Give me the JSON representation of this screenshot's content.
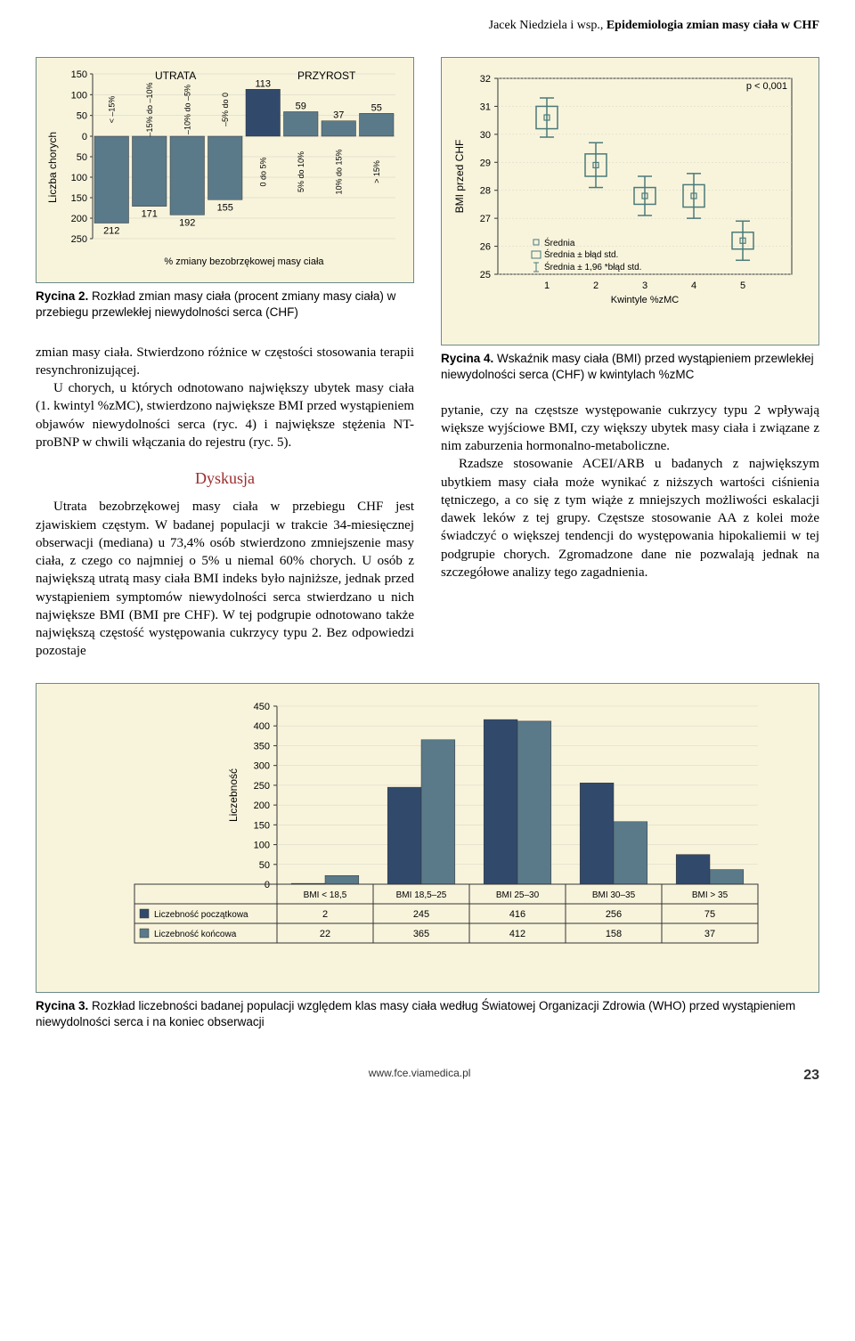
{
  "header": {
    "author": "Jacek Niedziela i wsp.,",
    "title": "Epidemiologia zmian masy ciała w CHF"
  },
  "fig2": {
    "chart": {
      "type": "bar",
      "ylabel": "Liczba chorych",
      "positive_ticks": [
        0,
        50,
        100,
        150
      ],
      "negative_ticks": [
        50,
        100,
        150,
        200,
        250
      ],
      "section_labels": {
        "loss": "UTRATA",
        "gain": "PRZYROST"
      },
      "x_title": "% zmiany bezobrzękowej masy ciała",
      "bars": [
        {
          "label": "< –15%",
          "value": -212,
          "color": "#5a7a8a"
        },
        {
          "label": "–15% do –10%",
          "value": -171,
          "color": "#5a7a8a"
        },
        {
          "label": "–10% do –5%",
          "value": -192,
          "color": "#5a7a8a"
        },
        {
          "label": "–5% do 0",
          "value": -155,
          "color": "#5a7a8a"
        },
        {
          "label": "0 do 5%",
          "value": 113,
          "color": "#314a6c"
        },
        {
          "label": "5% do 10%",
          "value": 59,
          "color": "#5a7a8a"
        },
        {
          "label": "10% do 15%",
          "value": 37,
          "color": "#5a7a8a"
        },
        {
          "label": "> 15%",
          "value": 55,
          "color": "#5a7a8a"
        }
      ]
    },
    "caption_bold": "Rycina 2.",
    "caption_rest": " Rozkład zmian masy ciała (procent zmiany masy ciała) w przebiegu przewlekłej niewydolności serca (CHF)"
  },
  "left_body": {
    "p1_noindent": "zmian masy ciała. Stwierdzono różnice w częstości stosowania terapii resynchronizującej.",
    "p2": "U chorych, u których odnotowano największy ubytek masy ciała (1. kwintyl %zMC), stwierdzono największe BMI przed wystąpieniem objawów niewydolności serca (ryc. 4) i największe stężenia NT-proBNP w chwili włączania do rejestru (ryc. 5)."
  },
  "discussion": {
    "title": "Dyskusja",
    "p1": "Utrata bezobrzękowej masy ciała w przebiegu CHF jest zjawiskiem częstym. W badanej populacji w trakcie 34-miesięcznej obserwacji (mediana) u 73,4% osób stwierdzono zmniejszenie masy ciała, z czego co najmniej o 5% u niemal 60% chorych. U osób z największą utratą masy ciała BMI indeks było najniższe, jednak przed wystąpieniem symptomów niewydolności serca stwierdzano u nich największe BMI (BMI pre CHF). W tej podgrupie odnotowano także największą częstość występowania cukrzycy typu 2. Bez odpowiedzi pozostaje"
  },
  "fig4": {
    "chart": {
      "type": "boxplot",
      "ylabel": "BMI przed CHF",
      "xlabel": "Kwintyle %zMC",
      "pvalue": "p < 0,001",
      "ylim": [
        25,
        32
      ],
      "ytick_step": 1,
      "legend": {
        "mean": "Średnia",
        "se": "Średnia ± błąd std.",
        "ci": "Średnia ± 1,96 *błąd std."
      },
      "groups": [
        {
          "x": 1,
          "mean": 30.6,
          "se_low": 30.2,
          "se_high": 31.0,
          "ci_low": 29.9,
          "ci_high": 31.3,
          "color": "#4a7a7a"
        },
        {
          "x": 2,
          "mean": 28.9,
          "se_low": 28.5,
          "se_high": 29.3,
          "ci_low": 28.1,
          "ci_high": 29.7,
          "color": "#4a7a7a"
        },
        {
          "x": 3,
          "mean": 27.8,
          "se_low": 27.5,
          "se_high": 28.1,
          "ci_low": 27.1,
          "ci_high": 28.5,
          "color": "#4a7a7a"
        },
        {
          "x": 4,
          "mean": 27.8,
          "se_low": 27.4,
          "se_high": 28.2,
          "ci_low": 27.0,
          "ci_high": 28.6,
          "color": "#4a7a7a"
        },
        {
          "x": 5,
          "mean": 26.2,
          "se_low": 25.9,
          "se_high": 26.5,
          "ci_low": 25.5,
          "ci_high": 26.9,
          "color": "#4a7a7a"
        }
      ]
    },
    "caption_bold": "Rycina 4.",
    "caption_rest": " Wskaźnik masy ciała (BMI) przed wystąpieniem przewlekłej niewydolności serca (CHF) w kwintylach %zMC"
  },
  "right_body": {
    "p1_noindent": "pytanie, czy na częstsze występowanie cukrzycy typu 2 wpływają większe wyjściowe BMI, czy większy ubytek masy ciała i związane z nim zaburzenia hormonalno-metaboliczne.",
    "p2": "Rzadsze stosowanie ACEI/ARB u badanych z największym ubytkiem masy ciała może wynikać z niższych wartości ciśnienia tętniczego, a co się z tym wiąże z mniejszych możliwości eskalacji dawek leków z tej grupy. Częstsze stosowanie AA z kolei może świadczyć o większej tendencji do występowania hipokaliemii w tej podgrupie chorych. Zgromadzone dane nie pozwalają jednak na szczegółowe analizy tego zagadnienia."
  },
  "fig3": {
    "chart": {
      "type": "grouped-bar-with-table",
      "ylabel": "Liczebność",
      "ylim": [
        0,
        450
      ],
      "ytick_step": 50,
      "categories": [
        "BMI < 18,5",
        "BMI 18,5–25",
        "BMI 25–30",
        "BMI 30–35",
        "BMI > 35"
      ],
      "series": [
        {
          "name": "Liczebność początkowa",
          "color": "#314a6c",
          "values": [
            2,
            245,
            416,
            256,
            75
          ]
        },
        {
          "name": "Liczebność końcowa",
          "color": "#5a7a8a",
          "values": [
            22,
            365,
            412,
            158,
            37
          ]
        }
      ]
    },
    "caption_bold": "Rycina 3.",
    "caption_rest": " Rozkład liczebności badanej populacji względem klas masy ciała według Światowej Organizacji Zdrowia (WHO) przed wystąpieniem niewydolności serca i na koniec obserwacji"
  },
  "footer": {
    "site": "www.fce.viamedica.pl",
    "page": "23"
  }
}
